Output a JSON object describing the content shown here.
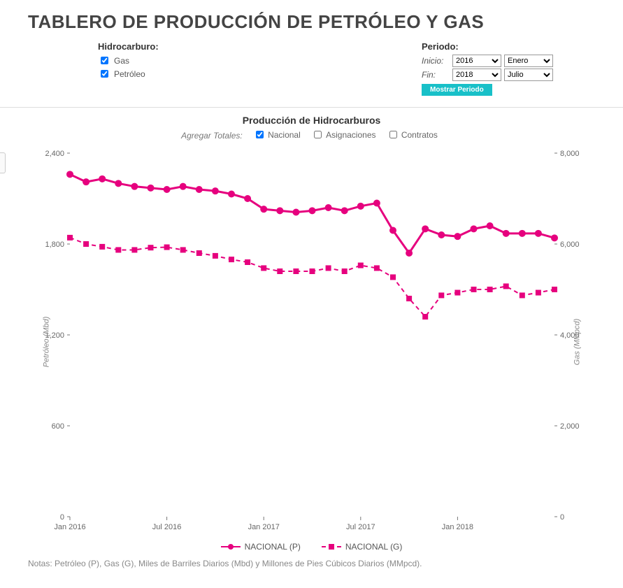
{
  "title": "TABLERO DE PRODUCCIÓN DE PETRÓLEO Y GAS",
  "controls": {
    "hidrocarburo_label": "Hidrocarburo:",
    "gas_label": "Gas",
    "petroleo_label": "Petróleo",
    "gas_checked": true,
    "petroleo_checked": true,
    "periodo_label": "Periodo:",
    "inicio_label": "Inicio:",
    "fin_label": "Fin:",
    "inicio_year": "2016",
    "inicio_month": "Enero",
    "fin_year": "2018",
    "fin_month": "Julio",
    "show_button": "Mostrar Periodo"
  },
  "chart": {
    "title": "Producción de Hidrocarburos",
    "agg_label": "Agregar Totales:",
    "agg_nacional": "Nacional",
    "agg_asignaciones": "Asignaciones",
    "agg_contratos": "Contratos",
    "agg_nacional_checked": true,
    "agg_asignaciones_checked": false,
    "agg_contratos_checked": false,
    "y_left_label": "Petróleo (Mbd)",
    "y_right_label": "Gas (MMpcd)",
    "y_left": {
      "min": 0,
      "max": 2400,
      "ticks": [
        0,
        600,
        1200,
        1800,
        2400
      ]
    },
    "y_right": {
      "min": 0,
      "max": 8000,
      "ticks": [
        0,
        2000,
        4000,
        6000,
        8000
      ]
    },
    "x_labels": [
      "Jan 2016",
      "Jul 2016",
      "Jan 2017",
      "Jul 2017",
      "Jan 2018"
    ],
    "x_label_idx": [
      0,
      6,
      12,
      18,
      24
    ],
    "n_points": 31,
    "series_p": {
      "name": "NACIONAL (P)",
      "color": "#e6007e",
      "dash": "none",
      "marker": "circle",
      "marker_size": 5,
      "line_width": 3,
      "values": [
        2260,
        2210,
        2230,
        2200,
        2180,
        2170,
        2160,
        2180,
        2160,
        2150,
        2130,
        2100,
        2030,
        2020,
        2010,
        2020,
        2040,
        2020,
        2050,
        2070,
        1890,
        1740,
        1900,
        1860,
        1850,
        1900,
        1920,
        1870,
        1870,
        1870,
        1840
      ]
    },
    "series_g": {
      "name": "NACIONAL (G)",
      "color": "#e6007e",
      "dash": "6,5",
      "marker": "square",
      "marker_size": 4,
      "line_width": 2,
      "values": [
        6140,
        6000,
        5940,
        5870,
        5870,
        5920,
        5930,
        5870,
        5800,
        5740,
        5660,
        5600,
        5470,
        5400,
        5400,
        5400,
        5470,
        5400,
        5530,
        5470,
        5270,
        4800,
        4400,
        4870,
        4930,
        5000,
        5000,
        5070,
        4870,
        4930,
        5000
      ]
    },
    "background": "#ffffff",
    "tick_color": "#777",
    "axis_color": "#cccccc",
    "text_color": "#666"
  },
  "legend": {
    "p": "NACIONAL (P)",
    "g": "NACIONAL (G)"
  },
  "notes": "Notas: Petróleo (P), Gas (G), Miles de Barriles Diarios (Mbd) y Millones de Pies Cúbicos Diarios (MMpcd)."
}
